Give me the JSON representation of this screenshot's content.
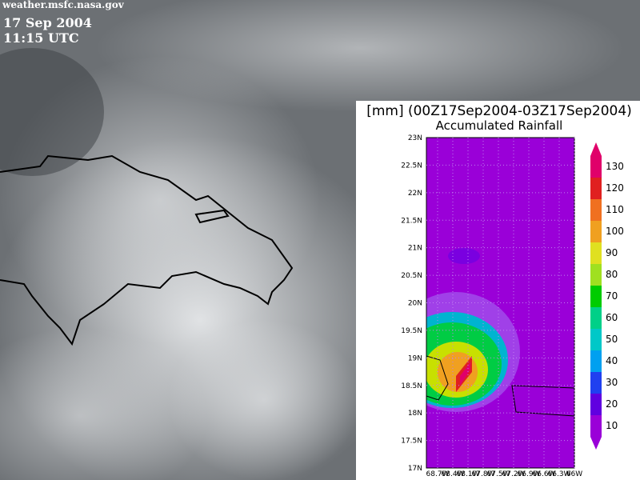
{
  "header": {
    "source": "weather.msfc.nasa.gov",
    "date": "17 Sep 2004",
    "time": "11:15 UTC"
  },
  "inset": {
    "title": "[mm] (00Z17Sep2004-03Z17Sep2004)",
    "subtitle": "Accumulated Rainfall",
    "lat_labels": [
      "23N",
      "22.5N",
      "22N",
      "21.5N",
      "21N",
      "20.5N",
      "20N",
      "19.5N",
      "19N",
      "18.5N",
      "18N",
      "17.5N",
      "17N"
    ],
    "lon_labels": [
      "68.7W",
      "68.4W",
      "68.1W",
      "67.8W",
      "67.5W",
      "67.2W",
      "66.9W",
      "66.6W",
      "66.3W",
      "66W"
    ],
    "colorbar_labels": [
      130,
      120,
      110,
      100,
      90,
      80,
      70,
      60,
      50,
      40,
      30,
      20,
      10
    ]
  }
}
